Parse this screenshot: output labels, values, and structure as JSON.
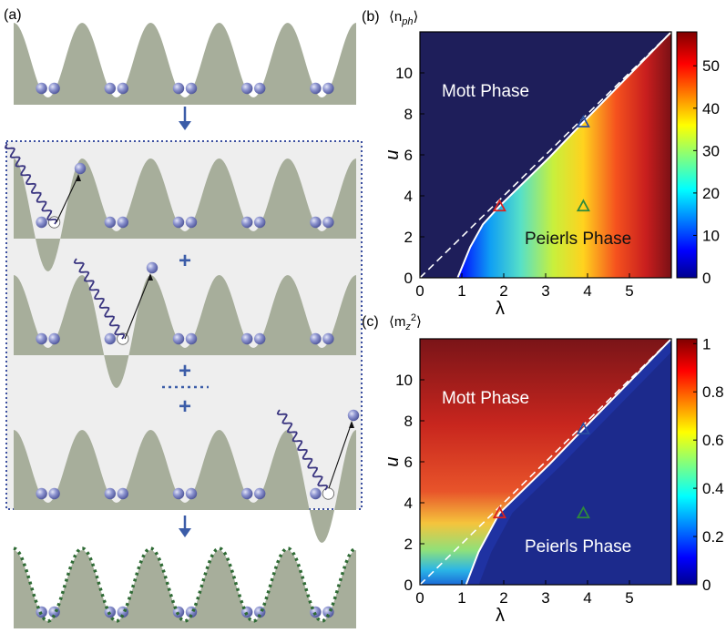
{
  "panels": {
    "a": {
      "label": "(a)",
      "plus": "+"
    },
    "b": {
      "label": "(b)",
      "quantity": "⟨n",
      "quantity_sub": "ph",
      "quantity_close": "⟩"
    },
    "c": {
      "label": "(c)",
      "quantity": "⟨m",
      "quantity_sub": "z",
      "quantity_sup": "2",
      "quantity_close": "⟩"
    }
  },
  "colors": {
    "potential": "#a7ae9b",
    "atom": "#6a72b8",
    "arrow": "#3b5ca8",
    "dotted_box": "#3b4fa0",
    "band": "#eeeeee",
    "dashed_potential": "#2f6b35",
    "photon": "#3a3580"
  },
  "chart_data": [
    {
      "type": "heatmap",
      "title": "⟨n_ph⟩",
      "xlabel": "λ",
      "ylabel": "u",
      "xlim": [
        0,
        6
      ],
      "ylim": [
        0,
        12
      ],
      "xticks": [
        "0",
        "1",
        "2",
        "3",
        "4",
        "5"
      ],
      "yticks": [
        "0",
        "2",
        "4",
        "6",
        "8",
        "10"
      ],
      "colorbar": {
        "min": 0,
        "max": 58,
        "ticks": [
          "0",
          "10",
          "20",
          "30",
          "40",
          "50"
        ]
      },
      "regions": [
        "Mott Phase",
        "Peierls Phase"
      ],
      "dashed_line": [
        [
          0,
          0
        ],
        [
          6,
          12
        ]
      ],
      "boundary": [
        [
          0.9,
          0
        ],
        [
          1.2,
          1.5
        ],
        [
          1.5,
          2.6
        ],
        [
          1.9,
          3.5
        ],
        [
          2.5,
          4.7
        ],
        [
          3.1,
          5.9
        ],
        [
          3.9,
          7.6
        ],
        [
          5.0,
          9.9
        ],
        [
          6.0,
          12
        ]
      ],
      "markers": [
        {
          "x": 1.9,
          "y": 3.5,
          "color": "#d9231f"
        },
        {
          "x": 3.9,
          "y": 7.6,
          "color": "#2a4fa0"
        },
        {
          "x": 3.9,
          "y": 3.5,
          "color": "#2e8a3c"
        }
      ]
    },
    {
      "type": "heatmap",
      "title": "⟨m_z^2⟩",
      "xlabel": "λ",
      "ylabel": "u",
      "xlim": [
        0,
        6
      ],
      "ylim": [
        0,
        12
      ],
      "xticks": [
        "0",
        "1",
        "2",
        "3",
        "4",
        "5"
      ],
      "yticks": [
        "0",
        "2",
        "4",
        "6",
        "8",
        "10"
      ],
      "colorbar": {
        "min": 0,
        "max": 1.02,
        "ticks": [
          "0",
          "0.2",
          "0.4",
          "0.6",
          "0.8",
          "1"
        ]
      },
      "regions": [
        "Mott Phase",
        "Peierls Phase"
      ],
      "dashed_line": [
        [
          0,
          0
        ],
        [
          6,
          12
        ]
      ],
      "boundary": [
        [
          1.1,
          0
        ],
        [
          1.4,
          1.6
        ],
        [
          1.9,
          3.5
        ],
        [
          2.5,
          4.7
        ],
        [
          3.1,
          5.9
        ],
        [
          3.9,
          7.6
        ],
        [
          5.0,
          9.9
        ],
        [
          6.0,
          12
        ]
      ],
      "markers": [
        {
          "x": 1.9,
          "y": 3.5,
          "color": "#d9231f"
        },
        {
          "x": 3.9,
          "y": 7.6,
          "color": "#2a4fa0"
        },
        {
          "x": 3.9,
          "y": 3.5,
          "color": "#2e8a3c"
        }
      ]
    }
  ]
}
